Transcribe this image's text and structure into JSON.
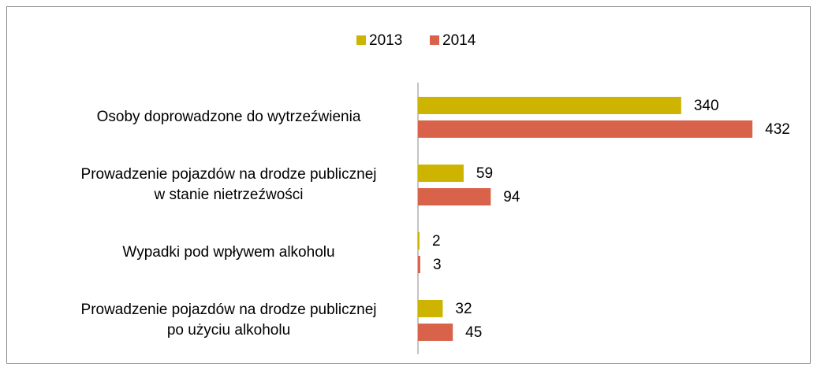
{
  "chart_data": {
    "type": "bar",
    "orientation": "horizontal",
    "categories": [
      "Osoby doprowadzone do wytrzeźwienia",
      "Prowadzenie pojazdów na drodze publicznej\nw stanie nietrzeźwości",
      "Wypadki pod wpływem alkoholu",
      "Prowadzenie pojazdów na drodze publicznej\npo użyciu alkoholu"
    ],
    "series": [
      {
        "name": "2013",
        "color": "#ccb400",
        "values": [
          340,
          59,
          2,
          32
        ]
      },
      {
        "name": "2014",
        "color": "#d9634a",
        "values": [
          432,
          94,
          3,
          45
        ]
      }
    ],
    "xlim": [
      0,
      440
    ],
    "legend": "top"
  }
}
